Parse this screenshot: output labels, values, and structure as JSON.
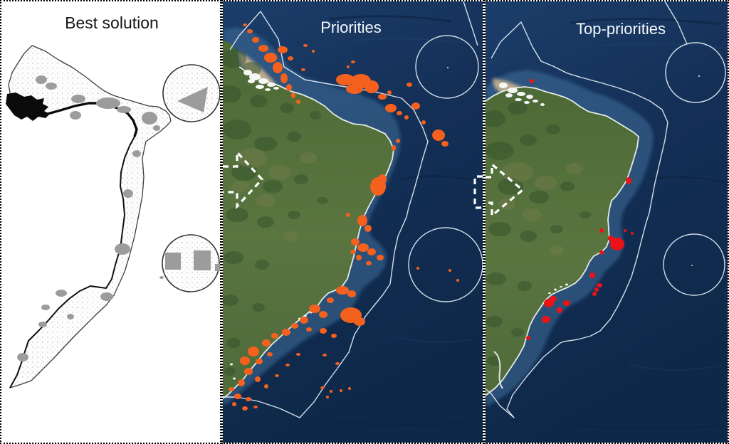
{
  "figure": {
    "type": "three-panel conservation planning map of the Brazilian coast",
    "panel_titles": [
      "Best solution",
      "Priorities",
      "Top-priorities"
    ]
  },
  "panel1": {
    "title": "Best solution",
    "patch_color": "#9c9c9c",
    "triangle_points": "247,140 290,120 284,156",
    "patches": [
      [
        56,
        110,
        8,
        6
      ],
      [
        70,
        119,
        8,
        5
      ],
      [
        108,
        137,
        10,
        6
      ],
      [
        150,
        143,
        17,
        8
      ],
      [
        172,
        152,
        10,
        5
      ],
      [
        104,
        160,
        8,
        6
      ],
      [
        208,
        164,
        11,
        9
      ],
      [
        218,
        178,
        5,
        4
      ],
      [
        190,
        214,
        6,
        5
      ],
      [
        178,
        270,
        7,
        6
      ],
      [
        170,
        348,
        11,
        8
      ],
      [
        148,
        415,
        9,
        6
      ],
      [
        84,
        410,
        8,
        5
      ],
      [
        62,
        430,
        6,
        4
      ],
      [
        58,
        454,
        6,
        4
      ],
      [
        30,
        500,
        8,
        6
      ],
      [
        97,
        443,
        5,
        4
      ],
      [
        241,
        365,
        11,
        12,
        "r"
      ],
      [
        282,
        364,
        12,
        14,
        "r"
      ],
      [
        304,
        374,
        4,
        5,
        "r"
      ],
      [
        225,
        388,
        3,
        2
      ]
    ]
  },
  "panel2": {
    "title": "Priorities",
    "patch_color": "#f4611e",
    "patches": [
      [
        31,
        33,
        3,
        2
      ],
      [
        38,
        42,
        4,
        3
      ],
      [
        46,
        54,
        5,
        4
      ],
      [
        57,
        66,
        7,
        5
      ],
      [
        67,
        79,
        9,
        7
      ],
      [
        77,
        93,
        7,
        8
      ],
      [
        86,
        108,
        5,
        7
      ],
      [
        93,
        121,
        4,
        5
      ],
      [
        99,
        132,
        3,
        4
      ],
      [
        106,
        141,
        3,
        3
      ],
      [
        84,
        68,
        7,
        5
      ],
      [
        95,
        80,
        4,
        3
      ],
      [
        113,
        96,
        3,
        2
      ],
      [
        116,
        62,
        3,
        2
      ],
      [
        127,
        70,
        2,
        2
      ],
      [
        172,
        110,
        13,
        8
      ],
      [
        194,
        112,
        14,
        10
      ],
      [
        209,
        120,
        10,
        9
      ],
      [
        185,
        123,
        12,
        7
      ],
      [
        224,
        134,
        6,
        4
      ],
      [
        183,
        85,
        3,
        2
      ],
      [
        176,
        92,
        2,
        2
      ],
      [
        236,
        150,
        8,
        6
      ],
      [
        248,
        157,
        4,
        3
      ],
      [
        258,
        163,
        3,
        3
      ],
      [
        262,
        117,
        4,
        3
      ],
      [
        271,
        147,
        6,
        5
      ],
      [
        282,
        170,
        3,
        3
      ],
      [
        303,
        188,
        9,
        8
      ],
      [
        312,
        200,
        5,
        4
      ],
      [
        234,
        128,
        3,
        3
      ],
      [
        246,
        196,
        3,
        3
      ],
      [
        240,
        206,
        3,
        4
      ],
      [
        224,
        250,
        6,
        7
      ],
      [
        218,
        260,
        11,
        13
      ],
      [
        196,
        308,
        7,
        8
      ],
      [
        204,
        319,
        5,
        5
      ],
      [
        176,
        300,
        3,
        3
      ],
      [
        186,
        338,
        6,
        5
      ],
      [
        197,
        346,
        8,
        6
      ],
      [
        209,
        352,
        6,
        5
      ],
      [
        221,
        360,
        5,
        4
      ],
      [
        191,
        360,
        4,
        4
      ],
      [
        205,
        368,
        4,
        3
      ],
      [
        183,
        352,
        4,
        3
      ],
      [
        274,
        375,
        2,
        2
      ],
      [
        319,
        378,
        2,
        2
      ],
      [
        330,
        392,
        2,
        2
      ],
      [
        168,
        406,
        9,
        6
      ],
      [
        181,
        411,
        6,
        5
      ],
      [
        151,
        420,
        5,
        4
      ],
      [
        129,
        432,
        8,
        6
      ],
      [
        141,
        440,
        6,
        5
      ],
      [
        180,
        441,
        15,
        11
      ],
      [
        192,
        450,
        8,
        6
      ],
      [
        114,
        448,
        6,
        5
      ],
      [
        101,
        456,
        5,
        4
      ],
      [
        89,
        465,
        6,
        5
      ],
      [
        73,
        470,
        5,
        4
      ],
      [
        121,
        461,
        4,
        3
      ],
      [
        141,
        463,
        5,
        4
      ],
      [
        156,
        470,
        4,
        3
      ],
      [
        61,
        480,
        6,
        5
      ],
      [
        43,
        492,
        8,
        7
      ],
      [
        31,
        505,
        7,
        6
      ],
      [
        51,
        506,
        5,
        4
      ],
      [
        66,
        496,
        4,
        3
      ],
      [
        36,
        520,
        6,
        5
      ],
      [
        49,
        531,
        4,
        4
      ],
      [
        26,
        536,
        5,
        5
      ],
      [
        61,
        541,
        3,
        3
      ],
      [
        76,
        526,
        3,
        2
      ],
      [
        91,
        511,
        3,
        2
      ],
      [
        106,
        496,
        3,
        2
      ],
      [
        21,
        555,
        5,
        4
      ],
      [
        36,
        559,
        4,
        3
      ],
      [
        31,
        572,
        4,
        3
      ],
      [
        46,
        570,
        3,
        2
      ],
      [
        143,
        497,
        3,
        2
      ],
      [
        161,
        509,
        3,
        2
      ],
      [
        140,
        543,
        3,
        2
      ],
      [
        152,
        548,
        2,
        2
      ],
      [
        166,
        547,
        2,
        2
      ],
      [
        178,
        544,
        2,
        2
      ],
      [
        147,
        556,
        2,
        2
      ],
      [
        12,
        545,
        4,
        3
      ],
      [
        16,
        566,
        3,
        3
      ]
    ]
  },
  "panel3": {
    "title": "Top-priorities",
    "patch_color": "#eb1218",
    "patches": [
      [
        65,
        112,
        3,
        3
      ],
      [
        201,
        252,
        4,
        5
      ],
      [
        196,
        322,
        2,
        2
      ],
      [
        206,
        326,
        2,
        2
      ],
      [
        163,
        322,
        3,
        3
      ],
      [
        185,
        341,
        10,
        9
      ],
      [
        176,
        333,
        4,
        4
      ],
      [
        163,
        353,
        3,
        3
      ],
      [
        150,
        385,
        4,
        4
      ],
      [
        160,
        399,
        4,
        3
      ],
      [
        156,
        405,
        3,
        3
      ],
      [
        153,
        411,
        3,
        3
      ],
      [
        95,
        418,
        5,
        4
      ],
      [
        89,
        424,
        7,
        6
      ],
      [
        114,
        424,
        5,
        4
      ],
      [
        104,
        434,
        4,
        4
      ],
      [
        85,
        447,
        6,
        5
      ],
      [
        60,
        473,
        3,
        3
      ]
    ]
  },
  "colors": {
    "ocean_deep": "#0e2849",
    "ocean_mid": "#1b3e6a",
    "shelf_water": "#3f6f9c",
    "land_green": "#55713c",
    "land_dark": "#33522c",
    "sediment_tan": "#c9b28f",
    "eez_boundary": "#dfe9f2",
    "coast_white": "#f2f6f2",
    "arrow_white": "#ffffff",
    "best_solution_gray": "#9c9c9c",
    "priorities_orange": "#f4611e",
    "top_priorities_red": "#eb1218",
    "panel_background": "#ffffff",
    "border_ink": "#000000"
  }
}
